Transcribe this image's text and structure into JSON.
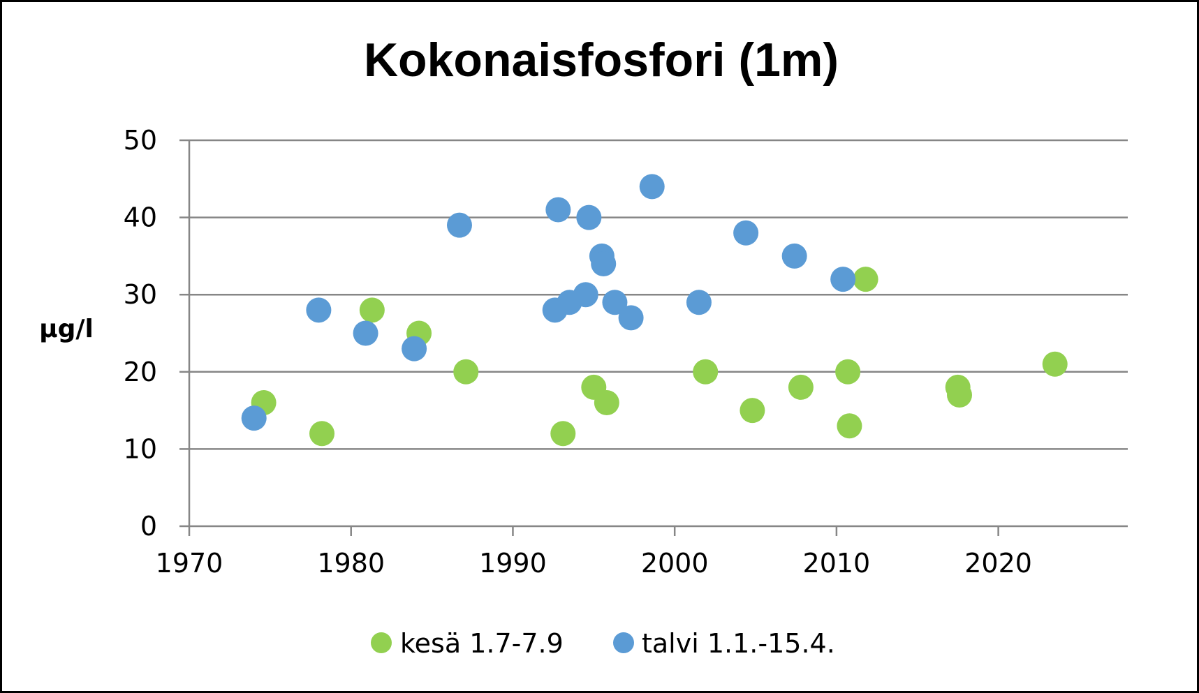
{
  "chart_data": {
    "type": "scatter",
    "title": "Kokonaisfosfori (1m)",
    "xlabel": "",
    "ylabel": "µg/l",
    "xlim": [
      1970,
      2028
    ],
    "ylim": [
      0,
      50
    ],
    "xticks": [
      1970,
      1980,
      1990,
      2000,
      2010,
      2020
    ],
    "yticks": [
      0,
      10,
      20,
      30,
      40,
      50
    ],
    "grid": true,
    "legend_position": "bottom",
    "series": [
      {
        "name": "kesä 1.7-7.9",
        "color": "#92D050",
        "points": [
          {
            "x": 1974.6,
            "y": 16
          },
          {
            "x": 1978.2,
            "y": 12
          },
          {
            "x": 1981.3,
            "y": 28
          },
          {
            "x": 1984.2,
            "y": 25
          },
          {
            "x": 1987.1,
            "y": 20
          },
          {
            "x": 1993.1,
            "y": 12
          },
          {
            "x": 1995.0,
            "y": 18
          },
          {
            "x": 1995.8,
            "y": 16
          },
          {
            "x": 2001.9,
            "y": 20
          },
          {
            "x": 2004.8,
            "y": 15
          },
          {
            "x": 2007.8,
            "y": 18
          },
          {
            "x": 2010.7,
            "y": 20
          },
          {
            "x": 2010.8,
            "y": 13
          },
          {
            "x": 2011.8,
            "y": 32
          },
          {
            "x": 2017.5,
            "y": 18
          },
          {
            "x": 2017.6,
            "y": 17
          },
          {
            "x": 2023.5,
            "y": 21
          }
        ]
      },
      {
        "name": "talvi 1.1.-15.4.",
        "color": "#5B9BD5",
        "points": [
          {
            "x": 1974.0,
            "y": 14
          },
          {
            "x": 1978.0,
            "y": 28
          },
          {
            "x": 1980.9,
            "y": 25
          },
          {
            "x": 1983.9,
            "y": 23
          },
          {
            "x": 1986.7,
            "y": 39
          },
          {
            "x": 1992.6,
            "y": 28
          },
          {
            "x": 1992.8,
            "y": 41
          },
          {
            "x": 1993.5,
            "y": 29
          },
          {
            "x": 1994.5,
            "y": 30
          },
          {
            "x": 1994.7,
            "y": 40
          },
          {
            "x": 1995.5,
            "y": 35
          },
          {
            "x": 1995.6,
            "y": 34
          },
          {
            "x": 1996.3,
            "y": 29
          },
          {
            "x": 1997.3,
            "y": 27
          },
          {
            "x": 1998.6,
            "y": 44
          },
          {
            "x": 2001.5,
            "y": 29
          },
          {
            "x": 2004.4,
            "y": 38
          },
          {
            "x": 2007.4,
            "y": 35
          },
          {
            "x": 2010.4,
            "y": 32
          }
        ]
      }
    ]
  }
}
